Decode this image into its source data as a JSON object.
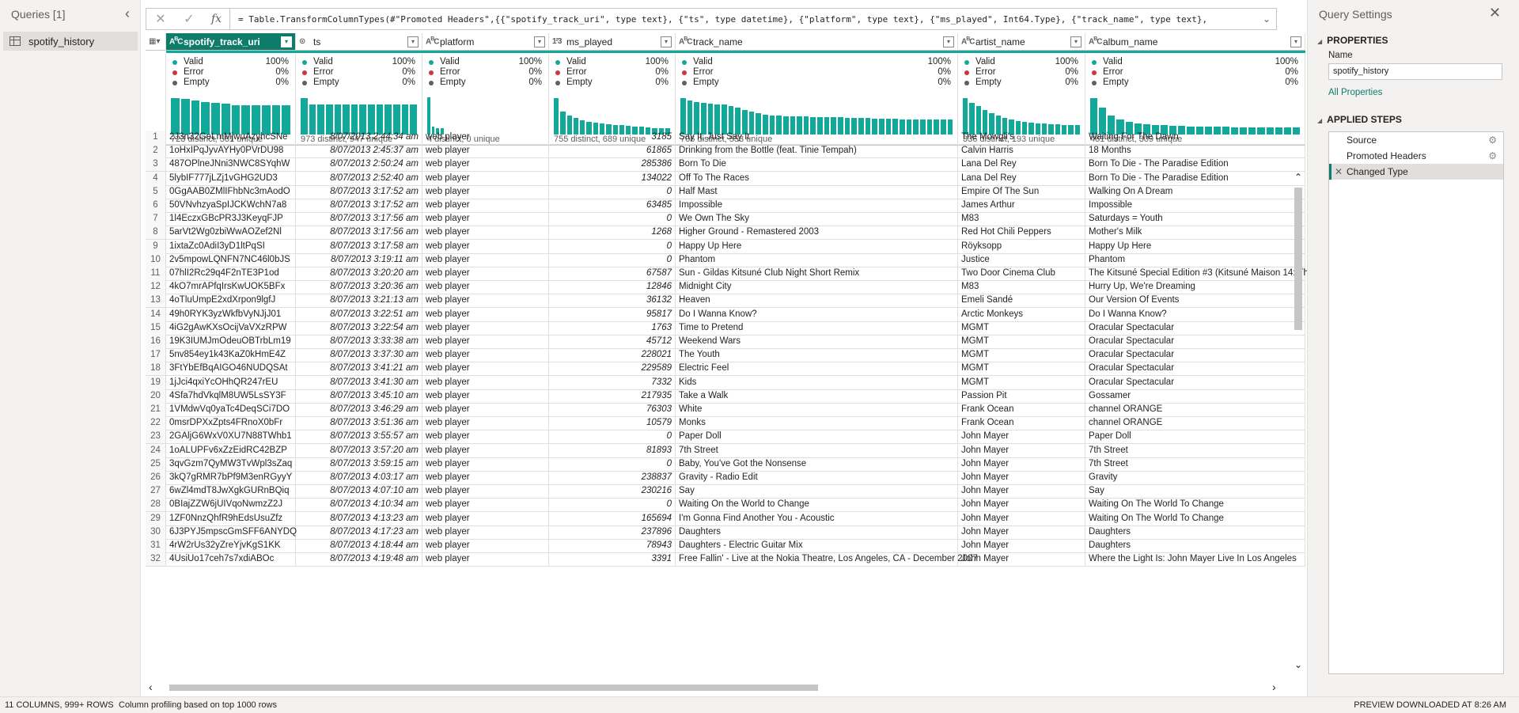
{
  "queries": {
    "title": "Queries [1]",
    "items": [
      {
        "label": "spotify_history"
      }
    ]
  },
  "formula": {
    "text": "= Table.TransformColumnTypes(#\"Promoted Headers\",{{\"spotify_track_uri\", type text}, {\"ts\", type datetime}, {\"platform\", type text}, {\"ms_played\", Int64.Type}, {\"track_name\", type text},"
  },
  "quality_labels": {
    "valid": "Valid",
    "error": "Error",
    "empty": "Empty"
  },
  "colors": {
    "valid": "#12a89a",
    "error": "#d13438",
    "empty": "#605e5c",
    "accent": "#0e7c6b"
  },
  "columns": [
    {
      "name": "spotify_track_uri",
      "type": "ABC",
      "valid": "100%",
      "error": "0%",
      "empty": "0%",
      "distinct": "723 distinct, 581 unique",
      "bars": [
        0.96,
        0.94,
        0.9,
        0.86,
        0.84,
        0.82,
        0.78,
        0.78,
        0.78,
        0.78,
        0.78,
        0.78
      ]
    },
    {
      "name": "ts",
      "type": "⊙",
      "valid": "100%",
      "error": "0%",
      "empty": "0%",
      "distinct": "973 distinct, 947 unique",
      "bars": [
        0.96,
        0.8,
        0.8,
        0.8,
        0.8,
        0.8,
        0.8,
        0.8,
        0.8,
        0.8,
        0.8,
        0.8,
        0.8,
        0.8
      ]
    },
    {
      "name": "platform",
      "type": "ABC",
      "valid": "100%",
      "error": "0%",
      "empty": "0%",
      "distinct": "4 distinct, 0 unique",
      "bars": [
        0.98,
        0.2,
        0.16,
        0.16,
        0,
        0,
        0,
        0,
        0,
        0,
        0,
        0,
        0,
        0,
        0,
        0,
        0,
        0,
        0,
        0,
        0,
        0,
        0,
        0,
        0,
        0
      ]
    },
    {
      "name": "ms_played",
      "type": "123",
      "valid": "100%",
      "error": "0%",
      "empty": "0%",
      "distinct": "755 distinct, 689 unique",
      "bars": [
        0.96,
        0.6,
        0.5,
        0.44,
        0.38,
        0.34,
        0.32,
        0.3,
        0.28,
        0.26,
        0.24,
        0.22,
        0.2,
        0.2,
        0.18,
        0.16,
        0.16,
        0.16
      ]
    },
    {
      "name": "track_name",
      "type": "ABC",
      "valid": "100%",
      "error": "0%",
      "empty": "0%",
      "distinct": "706 distinct, 553 unique",
      "bars": [
        0.96,
        0.9,
        0.86,
        0.84,
        0.82,
        0.8,
        0.8,
        0.76,
        0.7,
        0.64,
        0.6,
        0.56,
        0.52,
        0.5,
        0.5,
        0.48,
        0.48,
        0.48,
        0.48,
        0.46,
        0.46,
        0.46,
        0.46,
        0.46,
        0.44,
        0.44,
        0.44,
        0.44,
        0.42,
        0.42,
        0.42,
        0.42,
        0.4,
        0.4,
        0.4,
        0.4,
        0.4,
        0.4,
        0.4,
        0.4
      ]
    },
    {
      "name": "artist_name",
      "type": "ABC",
      "valid": "100%",
      "error": "0%",
      "empty": "0%",
      "distinct": "336 distinct, 193 unique",
      "bars": [
        0.96,
        0.84,
        0.74,
        0.64,
        0.56,
        0.5,
        0.44,
        0.4,
        0.36,
        0.34,
        0.32,
        0.3,
        0.3,
        0.28,
        0.28,
        0.26,
        0.26,
        0.26
      ]
    },
    {
      "name": "album_name",
      "type": "ABC",
      "valid": "100%",
      "error": "0%",
      "empty": "0%",
      "distinct": "481 distinct, 309 unique",
      "bars": [
        0.96,
        0.7,
        0.5,
        0.4,
        0.34,
        0.3,
        0.28,
        0.26,
        0.24,
        0.22,
        0.22,
        0.2,
        0.2,
        0.2,
        0.2,
        0.2,
        0.18,
        0.18,
        0.18,
        0.18,
        0.18,
        0.18,
        0.18,
        0.18
      ]
    }
  ],
  "rows": [
    [
      "1",
      "2J3n32GeLmMjwuAzyhcSNe",
      "8/07/2013 2:44:34 am",
      "web player",
      "3185",
      "Say It, Just Say It",
      "The Mowgli's",
      "Waiting For The Dawn"
    ],
    [
      "2",
      "1oHxIPqJyvAYHy0PVrDU98",
      "8/07/2013 2:45:37 am",
      "web player",
      "61865",
      "Drinking from the Bottle (feat. Tinie Tempah)",
      "Calvin Harris",
      "18 Months"
    ],
    [
      "3",
      "487OPlneJNni3NWC8SYqhW",
      "8/07/2013 2:50:24 am",
      "web player",
      "285386",
      "Born To Die",
      "Lana Del Rey",
      "Born To Die - The Paradise Edition"
    ],
    [
      "4",
      "5lybIF777jLZj1vGHG2UD3",
      "8/07/2013 2:52:40 am",
      "web player",
      "134022",
      "Off To The Races",
      "Lana Del Rey",
      "Born To Die - The Paradise Edition"
    ],
    [
      "5",
      "0GgAAB0ZMlIFhbNc3mAodO",
      "8/07/2013 3:17:52 am",
      "web player",
      "0",
      "Half Mast",
      "Empire Of The Sun",
      "Walking On A Dream"
    ],
    [
      "6",
      "50VNvhzyaSpIJCKWchN7a8",
      "8/07/2013 3:17:52 am",
      "web player",
      "63485",
      "Impossible",
      "James Arthur",
      "Impossible"
    ],
    [
      "7",
      "1l4EczxGBcPR3J3KeyqFJP",
      "8/07/2013 3:17:56 am",
      "web player",
      "0",
      "We Own The Sky",
      "M83",
      "Saturdays = Youth"
    ],
    [
      "8",
      "5arVt2Wg0zbiWwAOZef2Nl",
      "8/07/2013 3:17:56 am",
      "web player",
      "1268",
      "Higher Ground - Remastered 2003",
      "Red Hot Chili Peppers",
      "Mother's Milk"
    ],
    [
      "9",
      "1ixtaZc0AdiI3yD1ltPqSI",
      "8/07/2013 3:17:58 am",
      "web player",
      "0",
      "Happy Up Here",
      "Röyksopp",
      "Happy Up Here"
    ],
    [
      "10",
      "2v5mpowLQNFN7NC46l0bJS",
      "8/07/2013 3:19:11 am",
      "web player",
      "0",
      "Phantom",
      "Justice",
      "Phantom"
    ],
    [
      "11",
      "07hlI2Rc29q4F2nTE3P1od",
      "8/07/2013 3:20:20 am",
      "web player",
      "67587",
      "Sun - Gildas Kitsuné Club Night Short Remix",
      "Two Door Cinema Club",
      "The Kitsuné Special Edition #3 (Kitsuné Maison 14: Th"
    ],
    [
      "12",
      "4kO7mrAPfqIrsKwUOK5BFx",
      "8/07/2013 3:20:36 am",
      "web player",
      "12846",
      "Midnight City",
      "M83",
      "Hurry Up, We're Dreaming"
    ],
    [
      "13",
      "4oTluUmpE2xdXrpon9lgfJ",
      "8/07/2013 3:21:13 am",
      "web player",
      "36132",
      "Heaven",
      "Emeli Sandé",
      "Our Version Of Events"
    ],
    [
      "14",
      "49h0RYK3yzWkfbVyNJjJ01",
      "8/07/2013 3:22:51 am",
      "web player",
      "95817",
      "Do I Wanna Know?",
      "Arctic Monkeys",
      "Do I Wanna Know?"
    ],
    [
      "15",
      "4iG2gAwKXsOcijVaVXzRPW",
      "8/07/2013 3:22:54 am",
      "web player",
      "1763",
      "Time to Pretend",
      "MGMT",
      "Oracular Spectacular"
    ],
    [
      "16",
      "19K3IUMJmOdeuOBTrbLm19",
      "8/07/2013 3:33:38 am",
      "web player",
      "45712",
      "Weekend Wars",
      "MGMT",
      "Oracular Spectacular"
    ],
    [
      "17",
      "5nv854ey1k43KaZ0kHmE4Z",
      "8/07/2013 3:37:30 am",
      "web player",
      "228021",
      "The Youth",
      "MGMT",
      "Oracular Spectacular"
    ],
    [
      "18",
      "3FtYbEfBqAIGO46NUDQSAt",
      "8/07/2013 3:41:21 am",
      "web player",
      "229589",
      "Electric Feel",
      "MGMT",
      "Oracular Spectacular"
    ],
    [
      "19",
      "1jJci4qxiYcOHhQR247rEU",
      "8/07/2013 3:41:30 am",
      "web player",
      "7332",
      "Kids",
      "MGMT",
      "Oracular Spectacular"
    ],
    [
      "20",
      "4Sfa7hdVkqlM8UW5LsSY3F",
      "8/07/2013 3:45:10 am",
      "web player",
      "217935",
      "Take a Walk",
      "Passion Pit",
      "Gossamer"
    ],
    [
      "21",
      "1VMdwVq0yaTc4DeqSCi7DO",
      "8/07/2013 3:46:29 am",
      "web player",
      "76303",
      "White",
      "Frank Ocean",
      "channel ORANGE"
    ],
    [
      "22",
      "0msrDPXxZpts4FRnoX0bFr",
      "8/07/2013 3:51:36 am",
      "web player",
      "10579",
      "Monks",
      "Frank Ocean",
      "channel ORANGE"
    ],
    [
      "23",
      "2GAljG6WxV0XU7N88TWhb1",
      "8/07/2013 3:55:57 am",
      "web player",
      "0",
      "Paper Doll",
      "John Mayer",
      "Paper Doll"
    ],
    [
      "24",
      "1oALUPFv6xZzEidRC42BZP",
      "8/07/2013 3:57:20 am",
      "web player",
      "81893",
      "7th Street",
      "John Mayer",
      "7th Street"
    ],
    [
      "25",
      "3qvGzm7QyMW3TvWpl3sZaq",
      "8/07/2013 3:59:15 am",
      "web player",
      "0",
      "Baby, You've Got the Nonsense",
      "John Mayer",
      "7th Street"
    ],
    [
      "26",
      "3kQ7gRMR7bPf9M3enRGyyY",
      "8/07/2013 4:03:17 am",
      "web player",
      "238837",
      "Gravity - Radio Edit",
      "John Mayer",
      "Gravity"
    ],
    [
      "27",
      "6wZl4mdT8JwXgkGURnBQiq",
      "8/07/2013 4:07:10 am",
      "web player",
      "230216",
      "Say",
      "John Mayer",
      "Say"
    ],
    [
      "28",
      "0BIajZZW6jUIVqoNwmzZ2J",
      "8/07/2013 4:10:34 am",
      "web player",
      "0",
      "Waiting On the World to Change",
      "John Mayer",
      "Waiting On The World To Change"
    ],
    [
      "29",
      "1ZF0NnzQhfR9hEdsUsuZfz",
      "8/07/2013 4:13:23 am",
      "web player",
      "165694",
      "I'm Gonna Find Another You - Acoustic",
      "John Mayer",
      "Waiting On The World To Change"
    ],
    [
      "30",
      "6J3PYJ5mpscGmSFF6ANYDQ",
      "8/07/2013 4:17:23 am",
      "web player",
      "237896",
      "Daughters",
      "John Mayer",
      "Daughters"
    ],
    [
      "31",
      "4rW2rUs32yZreYjvKgS1KK",
      "8/07/2013 4:18:44 am",
      "web player",
      "78943",
      "Daughters - Electric Guitar Mix",
      "John Mayer",
      "Daughters"
    ],
    [
      "32",
      "4UsiUo17ceh7s7xdiABOc",
      "8/07/2013 4:19:48 am",
      "web player",
      "3391",
      "Free Fallin' - Live at the Nokia Theatre, Los Angeles, CA - December 2007",
      "John Mayer",
      "Where the Light Is: John Mayer Live In Los Angeles"
    ]
  ],
  "settings": {
    "title": "Query Settings",
    "properties_label": "PROPERTIES",
    "name_label": "Name",
    "name_value": "spotify_history",
    "all_properties": "All Properties",
    "applied_steps_label": "APPLIED STEPS",
    "steps": [
      {
        "label": "Source",
        "gear": true
      },
      {
        "label": "Promoted Headers",
        "gear": true
      },
      {
        "label": "Changed Type",
        "gear": false
      }
    ]
  },
  "status": {
    "counts": "11 COLUMNS, 999+ ROWS",
    "profiling": "Column profiling based on top 1000 rows",
    "preview": "PREVIEW DOWNLOADED AT 8:26 AM"
  }
}
